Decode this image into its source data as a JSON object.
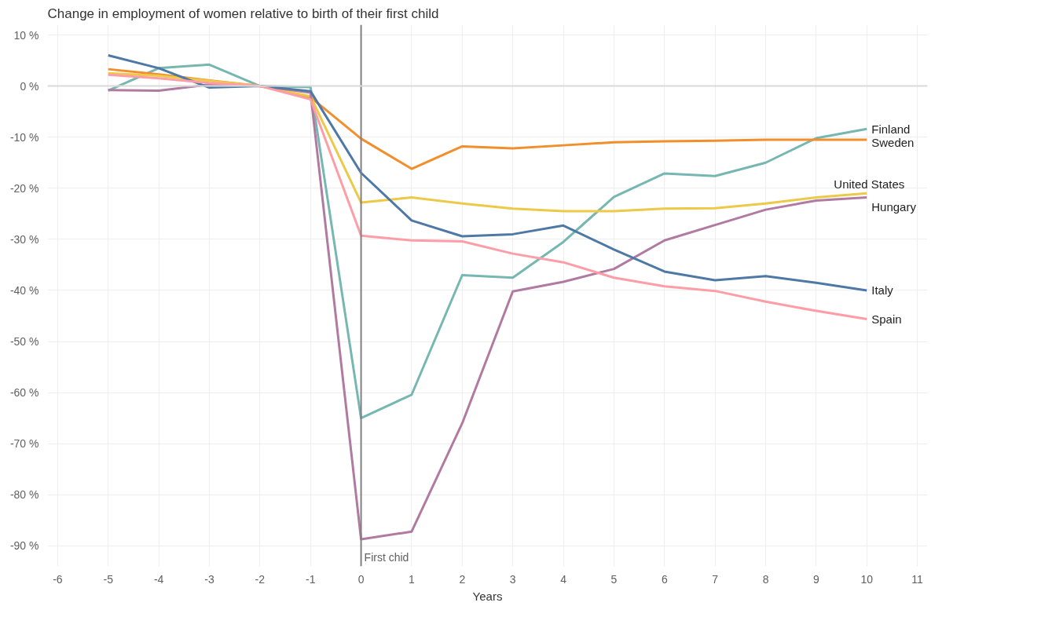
{
  "chart_data": {
    "type": "line",
    "title": "Change in employment of women relative to birth of their first child",
    "xlabel": "Years",
    "x": [
      -5,
      -4,
      -3,
      -2,
      -1,
      0,
      1,
      2,
      3,
      4,
      5,
      6,
      7,
      8,
      9,
      10
    ],
    "series": [
      {
        "name": "Finland",
        "color": "#76b7b2",
        "values": [
          -0.9,
          3.5,
          4.2,
          0,
          -0.2,
          -65,
          -60.4,
          -37,
          -37.5,
          -30.5,
          -21.7,
          -17.1,
          -17.6,
          -15,
          -10.2,
          -8.4
        ]
      },
      {
        "name": "Sweden",
        "color": "#f28e2b",
        "values": [
          3.3,
          2.3,
          1.1,
          0,
          -2.2,
          -10.3,
          -16.2,
          -11.8,
          -12.2,
          -11.6,
          -11.0,
          -10.8,
          -10.7,
          -10.5,
          -10.5,
          -10.5
        ]
      },
      {
        "name": "United States",
        "color": "#edc948",
        "values": [
          2.5,
          2,
          1,
          0,
          -2,
          -22.8,
          -21.8,
          -23,
          -24,
          -24.5,
          -24.5,
          -24,
          -23.9,
          -23,
          -21.8,
          -21
        ]
      },
      {
        "name": "Hungary",
        "color": "#b07aa1",
        "values": [
          -0.8,
          -0.9,
          0.3,
          0,
          -1.3,
          -88.7,
          -87.2,
          -66,
          -40.2,
          -38.3,
          -35.8,
          -30.2,
          -27.2,
          -24.2,
          -22.4,
          -21.8
        ]
      },
      {
        "name": "Italy",
        "color": "#4e79a7",
        "values": [
          6,
          3.5,
          -0.3,
          0,
          -1,
          -17,
          -26.3,
          -29.4,
          -29,
          -27.3,
          -32,
          -36.3,
          -38,
          -37.2,
          -38.5,
          -40
        ]
      },
      {
        "name": "Spain",
        "color": "#ff9da7",
        "values": [
          2.2,
          1.5,
          0.6,
          0,
          -2.6,
          -29.3,
          -30.2,
          -30.4,
          -32.8,
          -34.5,
          -37.5,
          -39.2,
          -40.1,
          -42.2,
          -44,
          -45.6
        ]
      }
    ],
    "xlim": [
      -6.2,
      11.2
    ],
    "xticks": [
      -6,
      -5,
      -4,
      -3,
      -2,
      -1,
      0,
      1,
      2,
      3,
      4,
      5,
      6,
      7,
      8,
      9,
      10,
      11
    ],
    "ylim": [
      -94,
      12
    ],
    "yticks": [
      {
        "value": 10,
        "label": "10 %"
      },
      {
        "value": 0,
        "label": "0 %"
      },
      {
        "value": -10,
        "label": "-10 %"
      },
      {
        "value": -20,
        "label": "-20 %"
      },
      {
        "value": -30,
        "label": "-30 %"
      },
      {
        "value": -40,
        "label": "-40 %"
      },
      {
        "value": -50,
        "label": "-50 %"
      },
      {
        "value": -60,
        "label": "-60 %"
      },
      {
        "value": -70,
        "label": "-70 %"
      },
      {
        "value": -80,
        "label": "-80 %"
      },
      {
        "value": -90,
        "label": "-90 %"
      }
    ],
    "ref_lines": [
      {
        "axis": "x",
        "value": 0,
        "label": "First chid",
        "color": "#808080"
      },
      {
        "axis": "y",
        "value": 0,
        "color": "#d9d9d9"
      }
    ],
    "grid": true,
    "line_style": "solid",
    "marker": "none"
  }
}
